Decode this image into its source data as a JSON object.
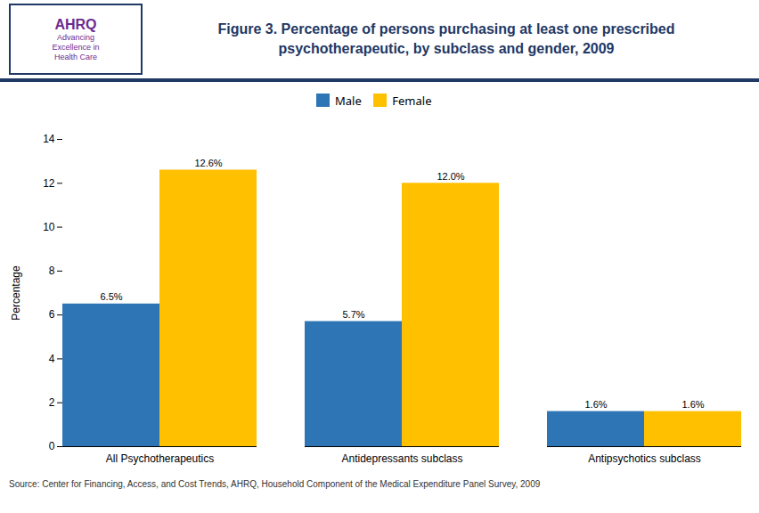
{
  "chart_data": {
    "type": "bar",
    "title": "Figure 3. Percentage of persons purchasing at least one prescribed\npsychotherapeutic, by subclass and gender, 2009",
    "annotations": [
      "AHRQ",
      "Advancing",
      "Excellence in",
      "Health Care"
    ],
    "source": "Source: Center for Financing, Access, and Cost Trends, AHRQ, Household Component of the Medical Expenditure Panel Survey,  2009",
    "categories": [
      "All Psychotherapeutics",
      "Antidepressants subclass",
      "Antipsychotics subclass"
    ],
    "series": [
      {
        "name": "Male",
        "color": "#2E75B6",
        "values": [
          6.5,
          5.7,
          1.6
        ],
        "value_labels": [
          "6.5%",
          "5.7%",
          "1.6%"
        ]
      },
      {
        "name": "Female",
        "color": "#FFC000",
        "values": [
          12.6,
          12.0,
          1.6
        ],
        "value_labels": [
          "12.6%",
          "12.0%",
          "1.6%"
        ]
      }
    ],
    "ylabel": "Percentage",
    "ylim": [
      0,
      14
    ],
    "yticks": [
      0,
      2,
      4,
      6,
      8,
      10,
      12,
      14
    ],
    "data_labels": true,
    "legend": "top",
    "grid": false
  }
}
